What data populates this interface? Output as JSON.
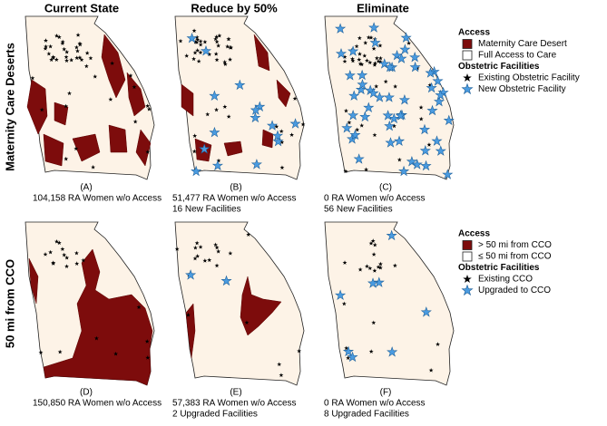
{
  "column_titles": [
    "Current State",
    "Reduce by 50%",
    "Eliminate"
  ],
  "row_labels": [
    "Maternity Care Deserts",
    "50 mi from CCO"
  ],
  "panels": [
    {
      "label": "(A)",
      "lines": [
        "104,158 RA Women w/o Access"
      ]
    },
    {
      "label": "(B)",
      "lines": [
        "51,477 RA Women w/o Access",
        "16 New Facilities"
      ]
    },
    {
      "label": "(C)",
      "lines": [
        "0 RA Women w/o Access",
        "56 New Facilities"
      ]
    },
    {
      "label": "(D)",
      "lines": [
        "150,850 RA Women w/o Access"
      ]
    },
    {
      "label": "(E)",
      "lines": [
        "57,383 RA Women w/o Access",
        "2 Upgraded Facilities"
      ]
    },
    {
      "label": "(F)",
      "lines": [
        "0 RA Women w/o Access",
        "8 Upgraded Facilities"
      ]
    }
  ],
  "legends": [
    {
      "sections": [
        {
          "title": "Access",
          "items": [
            "Maternity Care Desert",
            "Full Access to Care"
          ]
        },
        {
          "title": "Obstetric Facilities",
          "items": [
            "Existing Obstetric Facility",
            "New Obstetric Facility"
          ]
        }
      ]
    },
    {
      "sections": [
        {
          "title": "Access",
          "items": [
            "> 50 mi from CCO",
            "≤ 50 mi from CCO"
          ]
        },
        {
          "title": "Obstetric Facilities",
          "items": [
            "Existing CCO",
            "Upgraded to CCO"
          ]
        }
      ]
    }
  ]
}
